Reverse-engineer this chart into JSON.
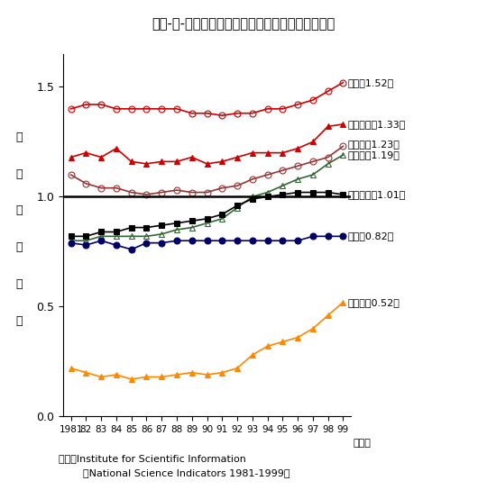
{
  "title": "第２-３-２図　主要国の論文の相対被引用度の推移",
  "ylabel_chars": [
    "相",
    "対",
    "被",
    "引",
    "用",
    "度"
  ],
  "xlabel_unit": "（年）",
  "years": [
    1981,
    1982,
    1983,
    1984,
    1985,
    1986,
    1987,
    1988,
    1989,
    1990,
    1991,
    1992,
    1993,
    1994,
    1995,
    1996,
    1997,
    1998,
    1999
  ],
  "xtick_labels": [
    "1981",
    "82",
    "83",
    "84",
    "85",
    "86",
    "87",
    "88",
    "89",
    "90",
    "91",
    "92",
    "93",
    "94",
    "95",
    "96",
    "97",
    "98",
    "99"
  ],
  "source_line1": "資料：Institute for Scientific Information",
  "source_line2": "「National Science Indicators 1981-1999」",
  "series": {
    "usa": {
      "label": "米国（1.52）",
      "color": "#cc0000",
      "marker": "o",
      "fillstyle": "none",
      "linewidth": 1.2,
      "markersize": 5,
      "values": [
        1.4,
        1.42,
        1.42,
        1.4,
        1.4,
        1.4,
        1.4,
        1.4,
        1.38,
        1.38,
        1.37,
        1.38,
        1.38,
        1.4,
        1.4,
        1.42,
        1.44,
        1.48,
        1.52
      ]
    },
    "uk": {
      "label": "イギリス（1.33）",
      "color": "#cc0000",
      "marker": "^",
      "fillstyle": "full",
      "linewidth": 1.2,
      "markersize": 5,
      "values": [
        1.18,
        1.2,
        1.18,
        1.22,
        1.16,
        1.15,
        1.16,
        1.16,
        1.18,
        1.15,
        1.16,
        1.18,
        1.2,
        1.2,
        1.2,
        1.22,
        1.25,
        1.32,
        1.33
      ]
    },
    "canada": {
      "label": "カナダ（1.23）",
      "color": "#993333",
      "marker": "o",
      "fillstyle": "none",
      "linewidth": 1.2,
      "markersize": 5,
      "values": [
        1.1,
        1.06,
        1.04,
        1.04,
        1.02,
        1.01,
        1.02,
        1.03,
        1.02,
        1.02,
        1.04,
        1.05,
        1.08,
        1.1,
        1.12,
        1.14,
        1.16,
        1.18,
        1.23
      ]
    },
    "germany": {
      "label": "ドイツ（1.19）",
      "color": "#336633",
      "marker": "^",
      "fillstyle": "none",
      "linewidth": 1.2,
      "markersize": 5,
      "values": [
        0.8,
        0.8,
        0.82,
        0.82,
        0.82,
        0.82,
        0.83,
        0.85,
        0.86,
        0.88,
        0.9,
        0.95,
        1.0,
        1.02,
        1.05,
        1.08,
        1.1,
        1.15,
        1.19
      ]
    },
    "france": {
      "label": "フランス（1.01）",
      "color": "#000000",
      "marker": "s",
      "fillstyle": "full",
      "linewidth": 1.2,
      "markersize": 5,
      "values": [
        0.82,
        0.82,
        0.84,
        0.84,
        0.86,
        0.86,
        0.87,
        0.88,
        0.89,
        0.9,
        0.92,
        0.96,
        0.99,
        1.0,
        1.01,
        1.02,
        1.02,
        1.02,
        1.01
      ]
    },
    "japan": {
      "label": "日本（0.82）",
      "color": "#000066",
      "marker": "o",
      "fillstyle": "full",
      "linewidth": 1.2,
      "markersize": 5,
      "values": [
        0.79,
        0.78,
        0.8,
        0.78,
        0.76,
        0.79,
        0.79,
        0.8,
        0.8,
        0.8,
        0.8,
        0.8,
        0.8,
        0.8,
        0.8,
        0.8,
        0.82,
        0.82,
        0.82
      ]
    },
    "russia": {
      "label": "ロシア（0.52）",
      "color": "#ff8800",
      "marker": "^",
      "fillstyle": "full",
      "linewidth": 1.2,
      "markersize": 5,
      "values": [
        0.22,
        0.2,
        0.18,
        0.19,
        0.17,
        0.18,
        0.18,
        0.19,
        0.2,
        0.19,
        0.2,
        0.22,
        0.28,
        0.32,
        0.34,
        0.36,
        0.4,
        0.46,
        0.52
      ]
    }
  },
  "ylim": [
    0.0,
    1.65
  ],
  "yticks": [
    0.0,
    0.5,
    1.0,
    1.5
  ],
  "hline_y": 1.0,
  "background_color": "#ffffff"
}
